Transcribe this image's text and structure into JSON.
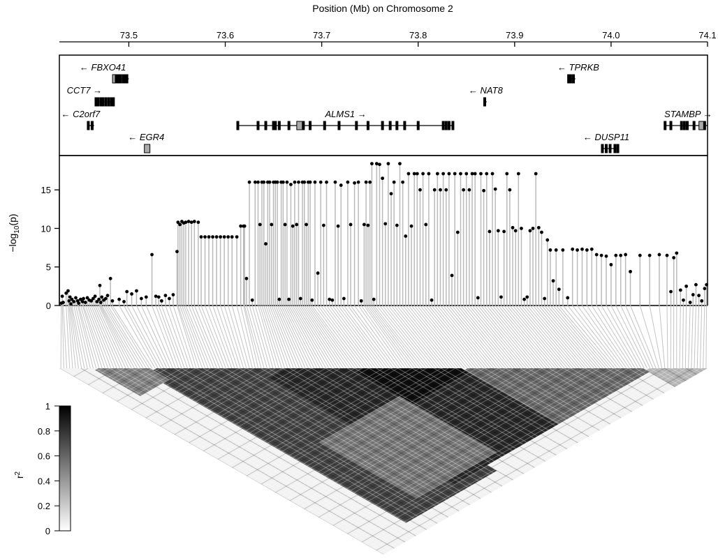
{
  "chart_data": {
    "type": "scatter",
    "top_axis_label": "Position (Mb) on Chromosome 2",
    "x_range": [
      73.428,
      74.1
    ],
    "x_ticks": [
      "73.5",
      "73.6",
      "73.7",
      "73.8",
      "73.9",
      "74.0",
      "74.1"
    ],
    "x_tick_values": [
      73.5,
      73.6,
      73.7,
      73.8,
      73.9,
      74.0,
      74.1
    ],
    "ylabel": "−log10(p)",
    "ylabel_main": "−log",
    "ylabel_sub": "10",
    "ylabel_end": "(p)",
    "ylim": [
      0,
      19
    ],
    "y_ticks": [
      "0",
      "5",
      "10",
      "15"
    ],
    "y_tick_values": [
      0,
      5,
      10,
      15
    ],
    "genes": [
      {
        "name": "FBXO41",
        "label": "← FBXO41",
        "start": 73.486,
        "end": 73.5,
        "row": 0,
        "label_x": 73.473,
        "exons": [
          73.486,
          73.487,
          73.488,
          73.489,
          73.491,
          73.494,
          73.496,
          73.498
        ]
      },
      {
        "name": "CCT7",
        "label": "CCT7 →",
        "start": 73.465,
        "end": 73.485,
        "row": 1,
        "label_x": 73.454,
        "exons": [
          73.466,
          73.468,
          73.471,
          73.473,
          73.476,
          73.479,
          73.482,
          73.484
        ]
      },
      {
        "name": "C2orf7",
        "label": "← C2orf7",
        "start": 73.458,
        "end": 73.464,
        "row": 2,
        "label_x": 73.45,
        "exons": [
          73.458,
          73.462
        ]
      },
      {
        "name": "EGR4",
        "label": "← EGR4",
        "start": 73.519,
        "end": 73.522,
        "row": 3,
        "label_x": 73.518,
        "exons": [
          73.519
        ]
      },
      {
        "name": "ALMS1",
        "label": "ALMS1 →",
        "start": 73.613,
        "end": 73.837,
        "row": 2,
        "label_x": 73.725,
        "exons": [
          73.613,
          73.634,
          73.642,
          73.65,
          73.652,
          73.656,
          73.666,
          73.677,
          73.681,
          73.688,
          73.703,
          73.718,
          73.736,
          73.748,
          73.763,
          73.771,
          73.778,
          73.786,
          73.8,
          73.826,
          73.829,
          73.832,
          73.836
        ]
      },
      {
        "name": "NAT8",
        "label": "← NAT8",
        "start": 73.869,
        "end": 73.871,
        "row": 1,
        "label_x": 73.87,
        "exons": [
          73.869
        ]
      },
      {
        "name": "TPRKB",
        "label": "← TPRKB",
        "start": 73.956,
        "end": 73.963,
        "row": 0,
        "label_x": 73.966,
        "exons": [
          73.956,
          73.958,
          73.961
        ]
      },
      {
        "name": "STAMBP",
        "label": "STAMBP →",
        "start": 74.056,
        "end": 74.1,
        "row": 2,
        "label_x": 74.08,
        "exons": [
          74.056,
          74.062,
          74.073,
          74.076,
          74.079,
          74.086,
          74.094,
          74.097
        ]
      },
      {
        "name": "DUSP11",
        "label": "← DUSP11",
        "start": 73.991,
        "end": 74.008,
        "row": 3,
        "label_x": 73.995,
        "exons": [
          73.991,
          73.995,
          73.999,
          74.004,
          74.007
        ]
      }
    ],
    "colorbar": {
      "label": "r",
      "label_sup": "2",
      "ticks": [
        "0",
        "0.2",
        "0.4",
        "0.6",
        "0.8",
        "1"
      ],
      "tick_values": [
        0,
        0.2,
        0.4,
        0.6,
        0.8,
        1
      ],
      "range": [
        0,
        1
      ],
      "colors": [
        "#ffffff",
        "#000000"
      ]
    },
    "series": [
      {
        "points_x": [
          73.43,
          73.431,
          73.432,
          73.435,
          73.437,
          73.438,
          73.439,
          73.44,
          73.441,
          73.443,
          73.445,
          73.447,
          73.448,
          73.45,
          73.452,
          73.453,
          73.455,
          73.457,
          73.459,
          73.461,
          73.463,
          73.465,
          73.467,
          73.469,
          73.47,
          73.471,
          73.472,
          73.474,
          73.476,
          73.478,
          73.481,
          73.483,
          73.49,
          73.495,
          73.498,
          73.503,
          73.508,
          73.513,
          73.518,
          73.524,
          73.528,
          73.531,
          73.534,
          73.538,
          73.542,
          73.546,
          73.55,
          73.551,
          73.553,
          73.555,
          73.557,
          73.559,
          73.562,
          73.565,
          73.568,
          73.572,
          73.575,
          73.579,
          73.583,
          73.587,
          73.591,
          73.595,
          73.599,
          73.603,
          73.607,
          73.612,
          73.616,
          73.619,
          73.62,
          73.622,
          73.625,
          73.628,
          73.631,
          73.634,
          73.636,
          73.638,
          73.64,
          73.642,
          73.644,
          73.646,
          73.648,
          73.65,
          73.652,
          73.654,
          73.656,
          73.658,
          73.66,
          73.662,
          73.664,
          73.666,
          73.668,
          73.67,
          73.672,
          73.674,
          73.676,
          73.678,
          73.68,
          73.682,
          73.684,
          73.686,
          73.688,
          73.69,
          73.693,
          73.696,
          73.699,
          73.702,
          73.705,
          73.708,
          73.711,
          73.714,
          73.717,
          73.72,
          73.723,
          73.727,
          73.73,
          73.734,
          73.738,
          73.741,
          73.744,
          73.746,
          73.748,
          73.75,
          73.752,
          73.754,
          73.757,
          73.76,
          73.763,
          73.766,
          73.769,
          73.772,
          73.775,
          73.778,
          73.781,
          73.784,
          73.787,
          73.79,
          73.793,
          73.796,
          73.799,
          73.802,
          73.805,
          73.808,
          73.811,
          73.814,
          73.817,
          73.82,
          73.823,
          73.826,
          73.829,
          73.832,
          73.835,
          73.838,
          73.841,
          73.844,
          73.847,
          73.85,
          73.853,
          73.856,
          73.859,
          73.862,
          73.865,
          73.868,
          73.871,
          73.874,
          73.877,
          73.88,
          73.883,
          73.886,
          73.889,
          73.892,
          73.895,
          73.898,
          73.901,
          73.904,
          73.907,
          73.91,
          73.913,
          73.916,
          73.919,
          73.922,
          73.925,
          73.928,
          73.931,
          73.934,
          73.937,
          73.94,
          73.943,
          73.946,
          73.95,
          73.955,
          73.96,
          73.965,
          73.97,
          73.975,
          73.98,
          73.985,
          73.99,
          73.995,
          74.0,
          74.005,
          74.01,
          74.015,
          74.02,
          74.03,
          74.04,
          74.05,
          74.058,
          74.062,
          74.065,
          74.068,
          74.072,
          74.075,
          74.078,
          74.082,
          74.085,
          74.088,
          74.091,
          74.094,
          74.097,
          74.099
        ],
        "points_y": [
          0.3,
          1.2,
          0.4,
          1.6,
          1.9,
          0.6,
          1.1,
          0.2,
          0.8,
          0.5,
          1.0,
          0.6,
          0.3,
          0.8,
          0.5,
          0.9,
          0.4,
          1.0,
          0.7,
          0.6,
          0.9,
          1.2,
          0.5,
          0.8,
          2.6,
          0.4,
          1.1,
          0.7,
          0.9,
          1.3,
          3.5,
          0.6,
          0.8,
          0.5,
          1.8,
          1.5,
          1.9,
          0.9,
          1.1,
          6.6,
          1.2,
          1.1,
          0.6,
          1.3,
          0.9,
          1.4,
          7.0,
          10.8,
          10.5,
          10.9,
          10.7,
          10.8,
          10.9,
          10.8,
          10.9,
          10.8,
          8.9,
          8.9,
          8.9,
          8.9,
          8.9,
          8.9,
          8.9,
          8.9,
          8.9,
          8.9,
          10.3,
          10.3,
          10.3,
          3.5,
          16.0,
          0.7,
          16.0,
          16.0,
          10.5,
          16.0,
          16.0,
          8.0,
          16.0,
          16.0,
          10.5,
          16.0,
          16.0,
          16.0,
          0.8,
          16.0,
          16.0,
          10.5,
          16.0,
          0.8,
          15.7,
          10.3,
          16.0,
          10.5,
          16.0,
          0.9,
          16.0,
          16.0,
          10.5,
          16.0,
          16.0,
          0.7,
          16.0,
          4.2,
          16.0,
          10.4,
          16.0,
          0.8,
          0.7,
          16.0,
          10.3,
          15.6,
          0.9,
          16.0,
          10.5,
          15.9,
          16.0,
          0.6,
          10.5,
          16.0,
          10.4,
          16.0,
          18.4,
          0.8,
          18.4,
          18.3,
          16.5,
          10.6,
          18.4,
          14.5,
          16.0,
          10.4,
          18.4,
          16.0,
          9.0,
          17.1,
          10.3,
          17.1,
          17.1,
          15.0,
          17.1,
          10.5,
          17.1,
          0.7,
          15.0,
          17.1,
          15.0,
          17.1,
          15.0,
          17.1,
          3.9,
          17.1,
          9.5,
          17.1,
          15.0,
          17.1,
          15.0,
          17.1,
          17.1,
          1.0,
          17.1,
          14.9,
          17.1,
          9.6,
          17.1,
          15.1,
          9.7,
          1.1,
          9.6,
          17.1,
          15.0,
          10.1,
          9.7,
          17.1,
          10.0,
          0.8,
          1.1,
          9.7,
          10.0,
          17.1,
          10.1,
          9.5,
          0.9,
          8.5,
          7.2,
          3.2,
          7.2,
          2.1,
          7.2,
          1.0,
          7.3,
          7.2,
          7.3,
          7.2,
          7.3,
          6.6,
          6.5,
          6.4,
          5.3,
          6.5,
          6.5,
          6.6,
          4.4,
          6.5,
          6.5,
          6.6,
          6.5,
          1.8,
          6.2,
          6.8,
          2.0,
          0.7,
          2.5,
          0.4,
          1.4,
          2.7,
          1.3,
          0.6,
          2.2,
          2.7,
          1.1,
          2.7,
          0.7,
          1.0,
          2.6,
          0.9
        ]
      }
    ],
    "ld_bands": [
      {
        "i_start": 0.12,
        "i_end": 0.4,
        "j_start": 0.15,
        "j_end": 0.95,
        "r2": 0.75
      },
      {
        "i_start": 0.3,
        "i_end": 0.62,
        "j_start": 0.35,
        "j_end": 0.92,
        "r2": 0.85
      },
      {
        "i_start": 0.45,
        "i_end": 0.62,
        "j_start": 0.47,
        "j_end": 0.64,
        "r2": 0.95
      },
      {
        "i_start": 0.05,
        "i_end": 0.14,
        "j_start": 0.06,
        "j_end": 0.2,
        "r2": 0.5
      },
      {
        "i_start": 0.62,
        "i_end": 0.9,
        "j_start": 0.63,
        "j_end": 0.92,
        "r2": 0.6
      },
      {
        "i_start": 0.2,
        "i_end": 0.45,
        "j_start": 0.6,
        "j_end": 0.9,
        "r2": 0.55
      },
      {
        "i_start": 0.9,
        "i_end": 1.0,
        "j_start": 0.91,
        "j_end": 1.0,
        "r2": 0.3
      }
    ]
  }
}
